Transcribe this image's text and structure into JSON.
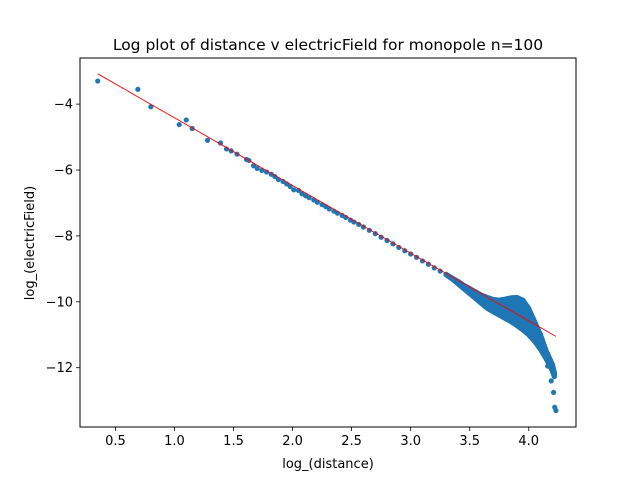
{
  "chart_data": {
    "type": "scatter",
    "title": "Log plot of distance v electricField for monopole n=100",
    "xlabel": "log_(distance)",
    "ylabel": "log_(electricField)",
    "xlim": [
      0.2,
      4.4
    ],
    "ylim": [
      -13.8,
      -2.6
    ],
    "xticks": [
      0.5,
      1.0,
      1.5,
      2.0,
      2.5,
      3.0,
      3.5,
      4.0
    ],
    "xtick_labels": [
      "0.5",
      "1.0",
      "1.5",
      "2.0",
      "2.5",
      "3.0",
      "3.5",
      "4.0"
    ],
    "yticks": [
      -12,
      -10,
      -8,
      -6,
      -4
    ],
    "ytick_labels": [
      "−12",
      "−10",
      "−8",
      "−6",
      "−4"
    ],
    "grid": false,
    "series": [
      {
        "kind": "points",
        "color": "#1f77b4",
        "x": [
          0.35,
          0.69,
          0.8,
          1.04,
          1.1,
          1.15,
          1.28,
          1.39,
          1.44,
          1.48,
          1.53,
          1.61,
          1.63,
          1.67,
          1.7,
          1.74,
          1.78,
          1.82,
          1.85,
          1.88,
          1.92,
          1.95,
          1.98,
          2.01,
          2.05,
          2.08,
          2.11,
          2.14,
          2.18,
          2.21,
          2.25,
          2.28,
          2.31,
          2.35,
          2.38,
          2.42,
          2.45,
          2.49,
          2.52,
          2.56,
          2.6,
          2.65,
          2.7,
          2.75,
          2.8,
          2.85,
          2.9,
          2.95,
          3.0,
          3.05,
          3.1,
          3.15,
          3.2,
          3.25,
          3.3,
          3.35,
          3.4,
          3.45,
          3.5,
          3.55,
          3.6,
          3.65,
          3.7,
          3.75,
          3.8,
          3.85,
          3.9,
          3.95,
          4.0,
          4.05,
          4.1,
          4.13,
          4.16,
          4.19,
          4.21,
          4.22,
          4.23
        ],
        "y": [
          -3.3,
          -3.55,
          -4.08,
          -4.62,
          -4.48,
          -4.74,
          -5.1,
          -5.18,
          -5.36,
          -5.42,
          -5.52,
          -5.68,
          -5.71,
          -5.87,
          -5.95,
          -6.01,
          -6.06,
          -6.13,
          -6.2,
          -6.29,
          -6.35,
          -6.42,
          -6.5,
          -6.6,
          -6.62,
          -6.72,
          -6.78,
          -6.84,
          -6.91,
          -6.98,
          -7.05,
          -7.11,
          -7.18,
          -7.25,
          -7.31,
          -7.38,
          -7.44,
          -7.52,
          -7.58,
          -7.65,
          -7.73,
          -7.83,
          -7.93,
          -8.04,
          -8.14,
          -8.24,
          -8.35,
          -8.45,
          -8.55,
          -8.65,
          -8.76,
          -8.86,
          -8.97,
          -9.07,
          -9.17,
          -9.28,
          -9.38,
          -9.5,
          -9.6,
          -9.7,
          -9.8,
          -9.88,
          -9.94,
          -9.97,
          -9.96,
          -9.93,
          -9.9,
          -10.0,
          -10.25,
          -10.7,
          -11.2,
          -11.6,
          -11.95,
          -12.4,
          -12.75,
          -13.2,
          -13.3
        ],
        "x_band": [
          3.3,
          3.35,
          3.4,
          3.45,
          3.5,
          3.55,
          3.6,
          3.65,
          3.7,
          3.75,
          3.8,
          3.85,
          3.9,
          3.95,
          4.0,
          4.05,
          4.1,
          4.15,
          4.2,
          4.22
        ],
        "y_band_low": [
          -9.17,
          -9.3,
          -9.45,
          -9.6,
          -9.75,
          -9.9,
          -10.05,
          -10.2,
          -10.3,
          -10.4,
          -10.5,
          -10.6,
          -10.72,
          -10.85,
          -11.0,
          -11.2,
          -11.45,
          -11.75,
          -12.1,
          -12.3
        ],
        "y_band_high": [
          -9.17,
          -9.28,
          -9.38,
          -9.5,
          -9.6,
          -9.7,
          -9.8,
          -9.87,
          -9.93,
          -9.95,
          -9.92,
          -9.88,
          -9.87,
          -9.95,
          -10.2,
          -10.6,
          -11.0,
          -11.5,
          -11.9,
          -12.2
        ]
      },
      {
        "kind": "fit_line",
        "color": "#ff0000",
        "x": [
          0.35,
          4.23
        ],
        "y": [
          -3.08,
          -11.05
        ]
      }
    ]
  }
}
